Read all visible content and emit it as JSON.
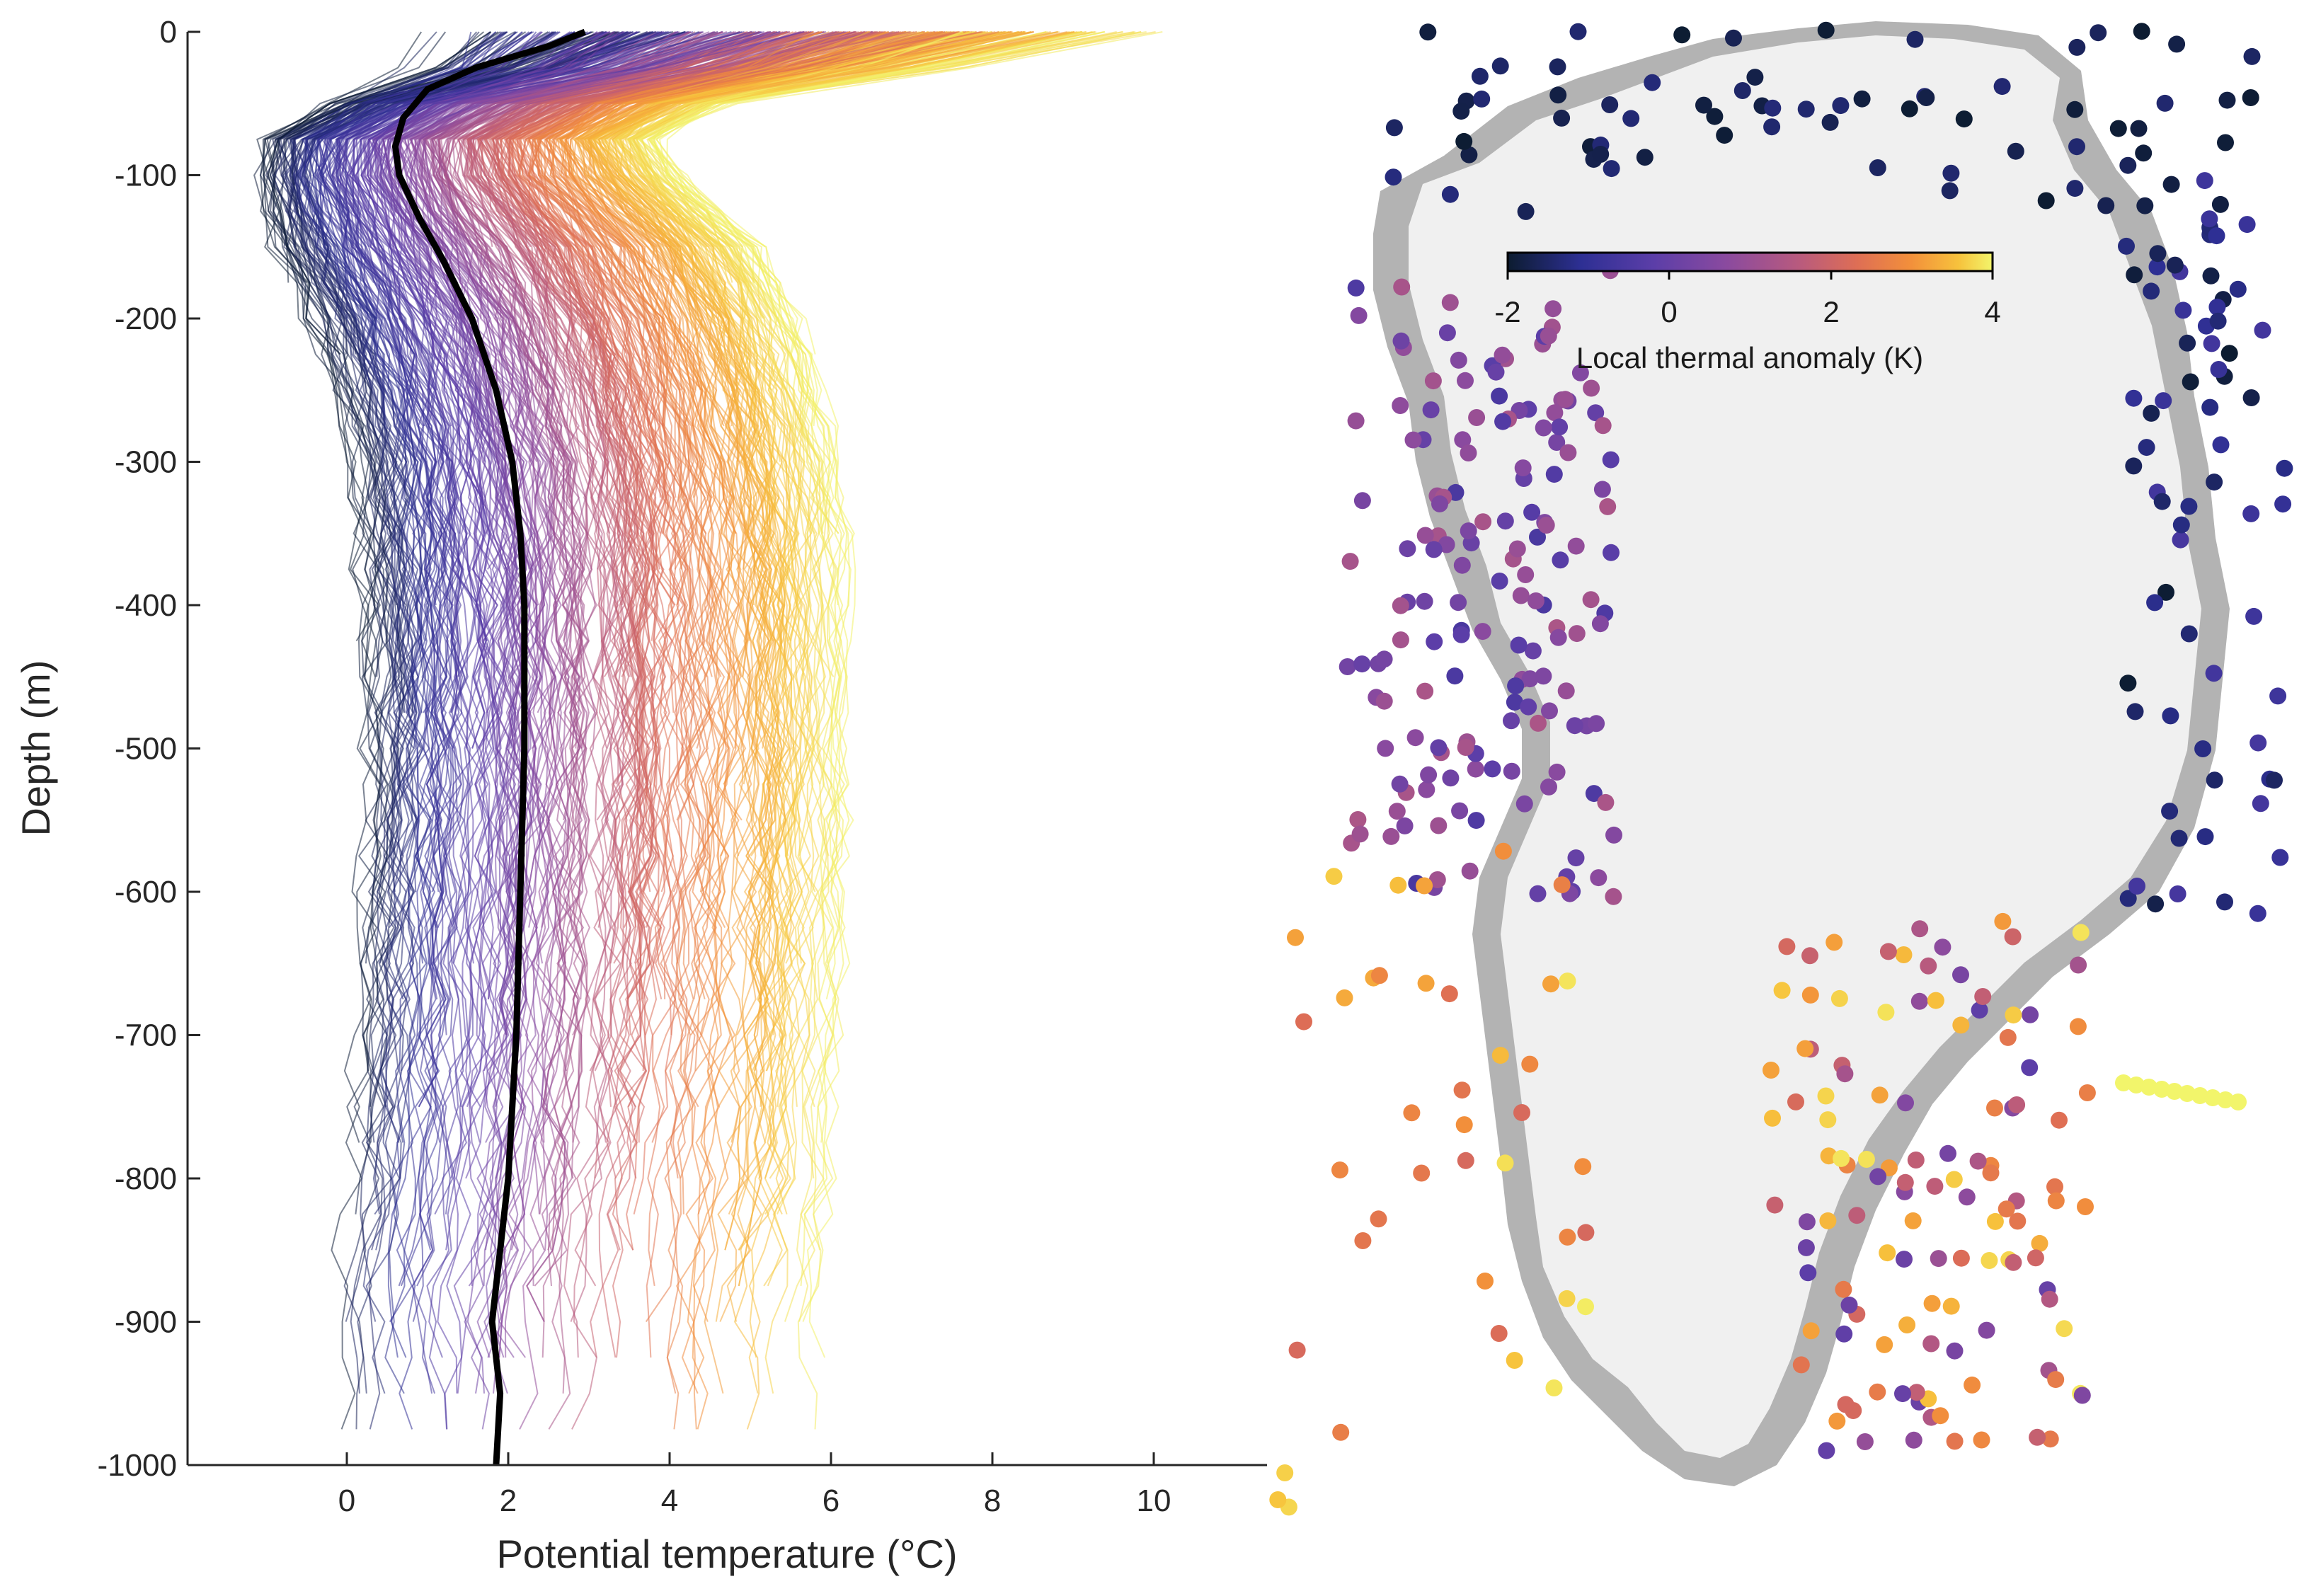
{
  "chart_data": [
    {
      "type": "line",
      "title": "",
      "xlabel": "Potential temperature (°C)",
      "ylabel": "Depth (m)",
      "xlim": [
        -2,
        11.5
      ],
      "ylim": [
        -1000,
        0
      ],
      "xticks": [
        0,
        2,
        4,
        6,
        8,
        10
      ],
      "yticks": [
        0,
        -100,
        -200,
        -300,
        -400,
        -500,
        -600,
        -700,
        -800,
        -900,
        -1000
      ],
      "xtick_labels": [
        "0",
        "2",
        "4",
        "6",
        "8",
        "10"
      ],
      "ytick_labels": [
        "0",
        "-100",
        "-200",
        "-300",
        "-400",
        "-500",
        "-600",
        "-700",
        "-800",
        "-900",
        "-1000"
      ],
      "grid": false,
      "series_note": "thousands of individual profiles colored by local thermal anomaly; thick black line is the mean profile",
      "mean_profile": {
        "color": "#000000",
        "depth": [
          0,
          -10,
          -25,
          -40,
          -60,
          -80,
          -100,
          -130,
          -160,
          -200,
          -250,
          -300,
          -350,
          -400,
          -450,
          -500,
          -600,
          -700,
          -800,
          -900,
          -950,
          -1000
        ],
        "temperature": [
          2.95,
          2.5,
          1.6,
          1.0,
          0.7,
          0.6,
          0.65,
          0.9,
          1.2,
          1.55,
          1.85,
          2.05,
          2.15,
          2.2,
          2.2,
          2.2,
          2.15,
          2.1,
          2.0,
          1.8,
          1.9,
          1.85
        ]
      }
    },
    {
      "type": "scatter",
      "title": "",
      "description_map": "Greenland outline with sample locations colored by anomaly",
      "colorbar": {
        "label": "Local thermal anomaly (K)",
        "range": [
          -2,
          4
        ],
        "ticks": [
          "-2",
          "0",
          "2",
          "4"
        ],
        "colormap": [
          "#0c1c30",
          "#2d2f93",
          "#5b3ea8",
          "#8a4a9f",
          "#b85a7e",
          "#de6e55",
          "#f28f3b",
          "#f7c23c",
          "#f2f56b"
        ]
      }
    }
  ],
  "colors": {
    "ice": "#f0f0f0",
    "land": "#b3b3b3",
    "axis": "#262626"
  }
}
